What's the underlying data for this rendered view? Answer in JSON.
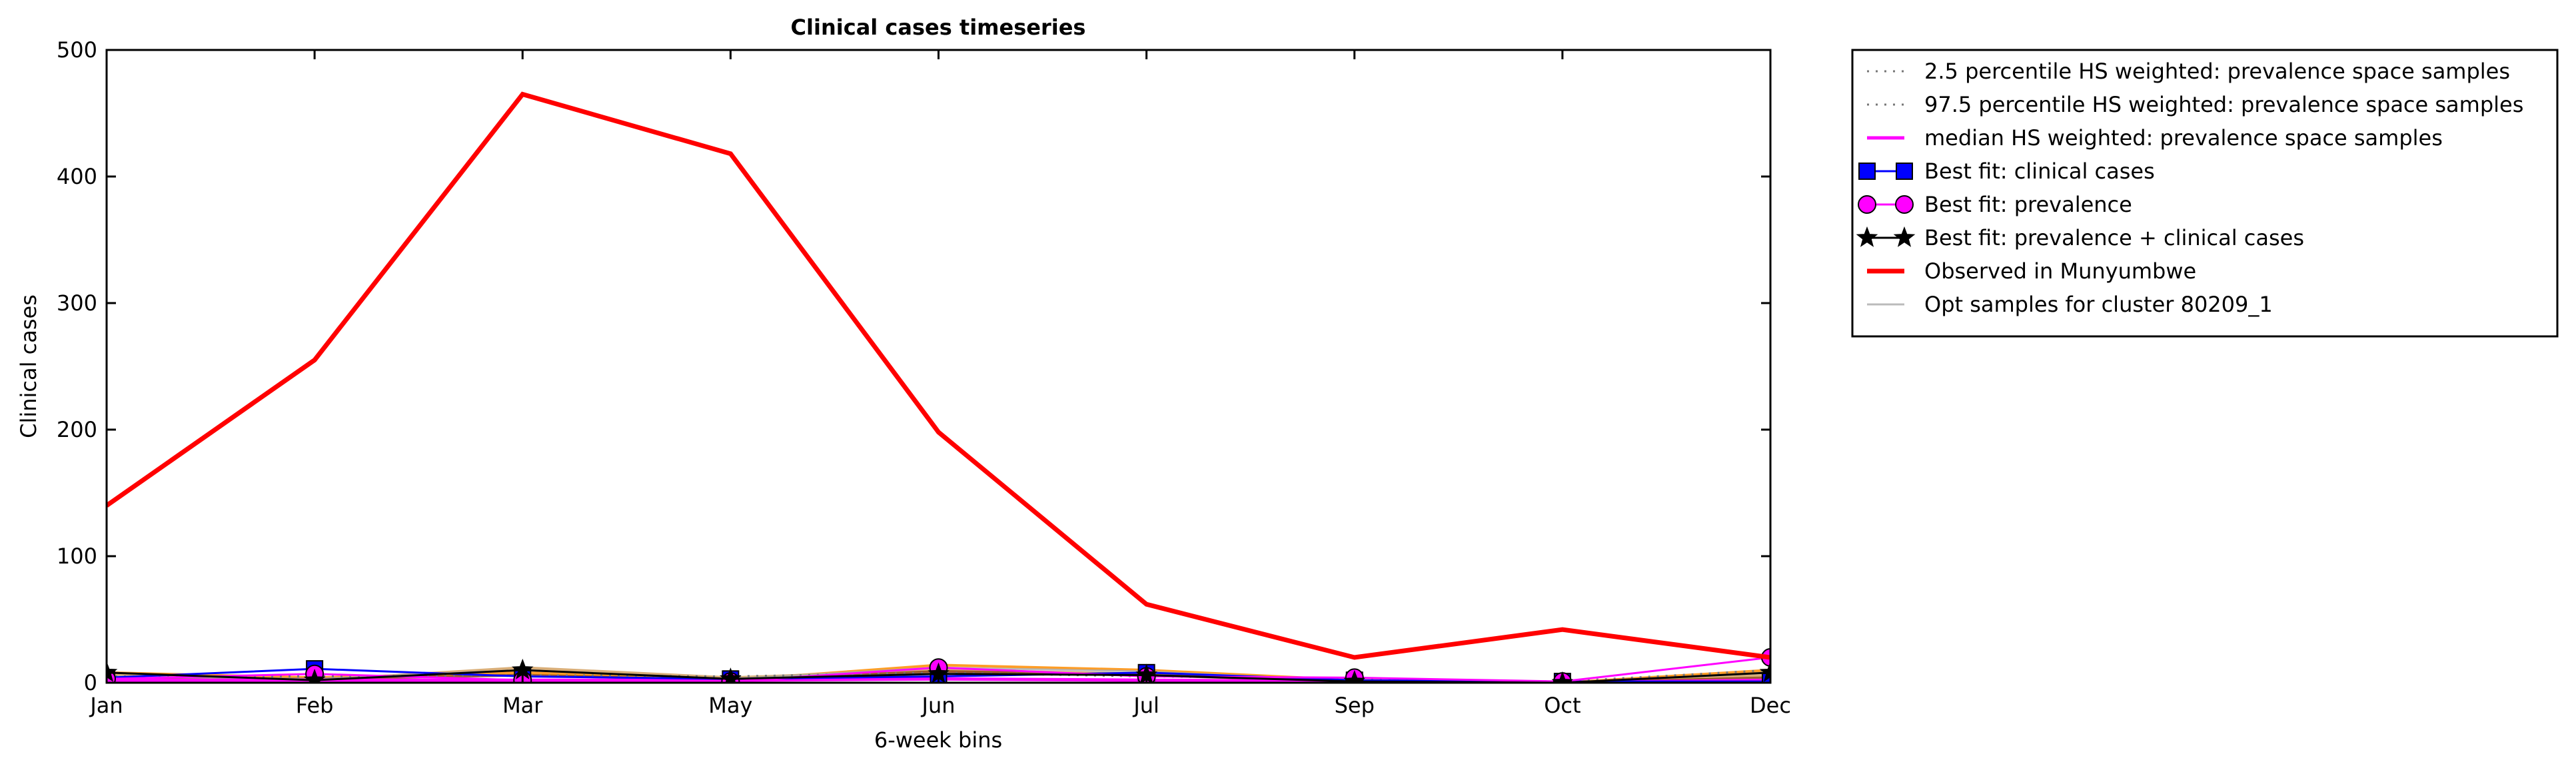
{
  "chart_data": {
    "type": "line",
    "title": "Clinical cases timeseries",
    "xlabel": "6-week bins",
    "ylabel": "Clinical cases",
    "categories": [
      "Jan",
      "Feb",
      "Mar",
      "May",
      "Jun",
      "Jul",
      "Sep",
      "Oct",
      "Dec"
    ],
    "ylim": [
      0,
      500
    ],
    "yticks": [
      0,
      100,
      200,
      300,
      400,
      500
    ],
    "grid": false,
    "legend_position": "outside-right-top",
    "series": [
      {
        "name": "Observed in Munyumbwe",
        "style": "observed",
        "color": "#ff0000",
        "values": [
          140,
          255,
          465,
          418,
          198,
          62,
          20,
          42,
          20
        ]
      },
      {
        "name": "Opt samples for cluster 80209_1",
        "style": "samples",
        "color": "#aaaaaa",
        "values": [
          5,
          3,
          10,
          3,
          12,
          9,
          1,
          0,
          8
        ]
      },
      {
        "name": "Best fit: clinical cases",
        "style": "marker-square",
        "color": "#0000ff",
        "values": [
          4,
          11,
          5,
          3,
          5,
          8,
          2,
          1,
          1
        ]
      },
      {
        "name": "Best fit: prevalence",
        "style": "marker-circle",
        "color": "#ff00ff",
        "values": [
          3,
          7,
          2,
          1,
          12,
          5,
          4,
          1,
          20
        ]
      },
      {
        "name": "Best fit: prevalence + clinical cases",
        "style": "marker-star",
        "color": "#000000",
        "values": [
          8,
          2,
          10,
          3,
          7,
          6,
          1,
          0,
          8
        ]
      },
      {
        "name": "median HS weighted: prevalence space samples",
        "style": "median",
        "color": "#ff00ff",
        "values": [
          2,
          2,
          2,
          2,
          3,
          2,
          1,
          0,
          2
        ]
      },
      {
        "name": "2.5 percentile HS weighted: prevalence space samples",
        "style": "percentile",
        "color": "#777777",
        "values": [
          0,
          0,
          0,
          0,
          0,
          0,
          0,
          0,
          0
        ]
      },
      {
        "name": "97.5 percentile HS weighted: prevalence space samples",
        "style": "percentile",
        "color": "#777777",
        "values": [
          5,
          5,
          6,
          5,
          8,
          5,
          3,
          1,
          10
        ]
      }
    ],
    "extra_sample_lines": [
      {
        "color": "#ff8c00",
        "values": [
          8,
          4,
          8,
          2,
          14,
          10,
          2,
          0,
          10
        ]
      },
      {
        "color": "#d2a060",
        "values": [
          6,
          2,
          12,
          4,
          10,
          7,
          1,
          0,
          6
        ]
      },
      {
        "color": "#8b4513",
        "values": [
          3,
          3,
          6,
          2,
          9,
          6,
          1,
          0,
          4
        ]
      }
    ],
    "legend": [
      {
        "label": "2.5 percentile HS weighted: prevalence space samples",
        "style": "percentile",
        "color": "#777777"
      },
      {
        "label": "97.5 percentile HS weighted: prevalence space samples",
        "style": "percentile",
        "color": "#777777"
      },
      {
        "label": "median HS weighted: prevalence space samples",
        "style": "median",
        "color": "#ff00ff"
      },
      {
        "label": "Best fit: clinical cases",
        "style": "marker-square",
        "color": "#0000ff"
      },
      {
        "label": "Best fit: prevalence",
        "style": "marker-circle",
        "color": "#ff00ff"
      },
      {
        "label": "Best fit: prevalence + clinical cases",
        "style": "marker-star",
        "color": "#000000"
      },
      {
        "label": "Observed in Munyumbwe",
        "style": "observed",
        "color": "#ff0000"
      },
      {
        "label": "Opt samples for cluster 80209_1",
        "style": "samples",
        "color": "#aaaaaa"
      }
    ]
  }
}
